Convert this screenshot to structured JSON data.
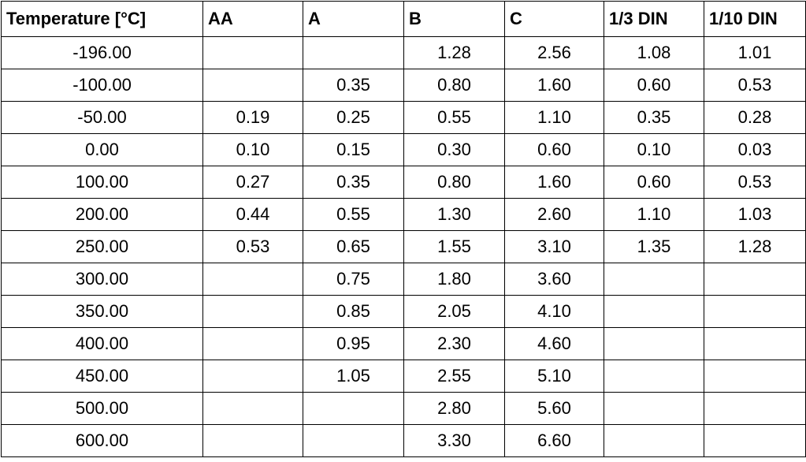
{
  "table": {
    "header": [
      "Temperature [°C]",
      "AA",
      "A",
      "B",
      "C",
      "1/3 DIN",
      "1/10 DIN"
    ],
    "rows": [
      [
        "-196.00",
        null,
        null,
        "1.28",
        "2.56",
        "1.08",
        "1.01"
      ],
      [
        "-100.00",
        null,
        "0.35",
        "0.80",
        "1.60",
        "0.60",
        "0.53"
      ],
      [
        "-50.00",
        "0.19",
        "0.25",
        "0.55",
        "1.10",
        "0.35",
        "0.28"
      ],
      [
        "0.00",
        "0.10",
        "0.15",
        "0.30",
        "0.60",
        "0.10",
        "0.03"
      ],
      [
        "100.00",
        "0.27",
        "0.35",
        "0.80",
        "1.60",
        "0.60",
        "0.53"
      ],
      [
        "200.00",
        "0.44",
        "0.55",
        "1.30",
        "2.60",
        "1.10",
        "1.03"
      ],
      [
        "250.00",
        "0.53",
        "0.65",
        "1.55",
        "3.10",
        "1.35",
        "1.28"
      ],
      [
        "300.00",
        null,
        "0.75",
        "1.80",
        "3.60",
        null,
        null
      ],
      [
        "350.00",
        null,
        "0.85",
        "2.05",
        "4.10",
        null,
        null
      ],
      [
        "400.00",
        null,
        "0.95",
        "2.30",
        "4.60",
        null,
        null
      ],
      [
        "450.00",
        null,
        "1.05",
        "2.55",
        "5.10",
        null,
        null
      ],
      [
        "500.00",
        null,
        null,
        "2.80",
        "5.60",
        null,
        null
      ],
      [
        "600.00",
        null,
        null,
        "3.30",
        "6.60",
        null,
        null
      ]
    ]
  }
}
